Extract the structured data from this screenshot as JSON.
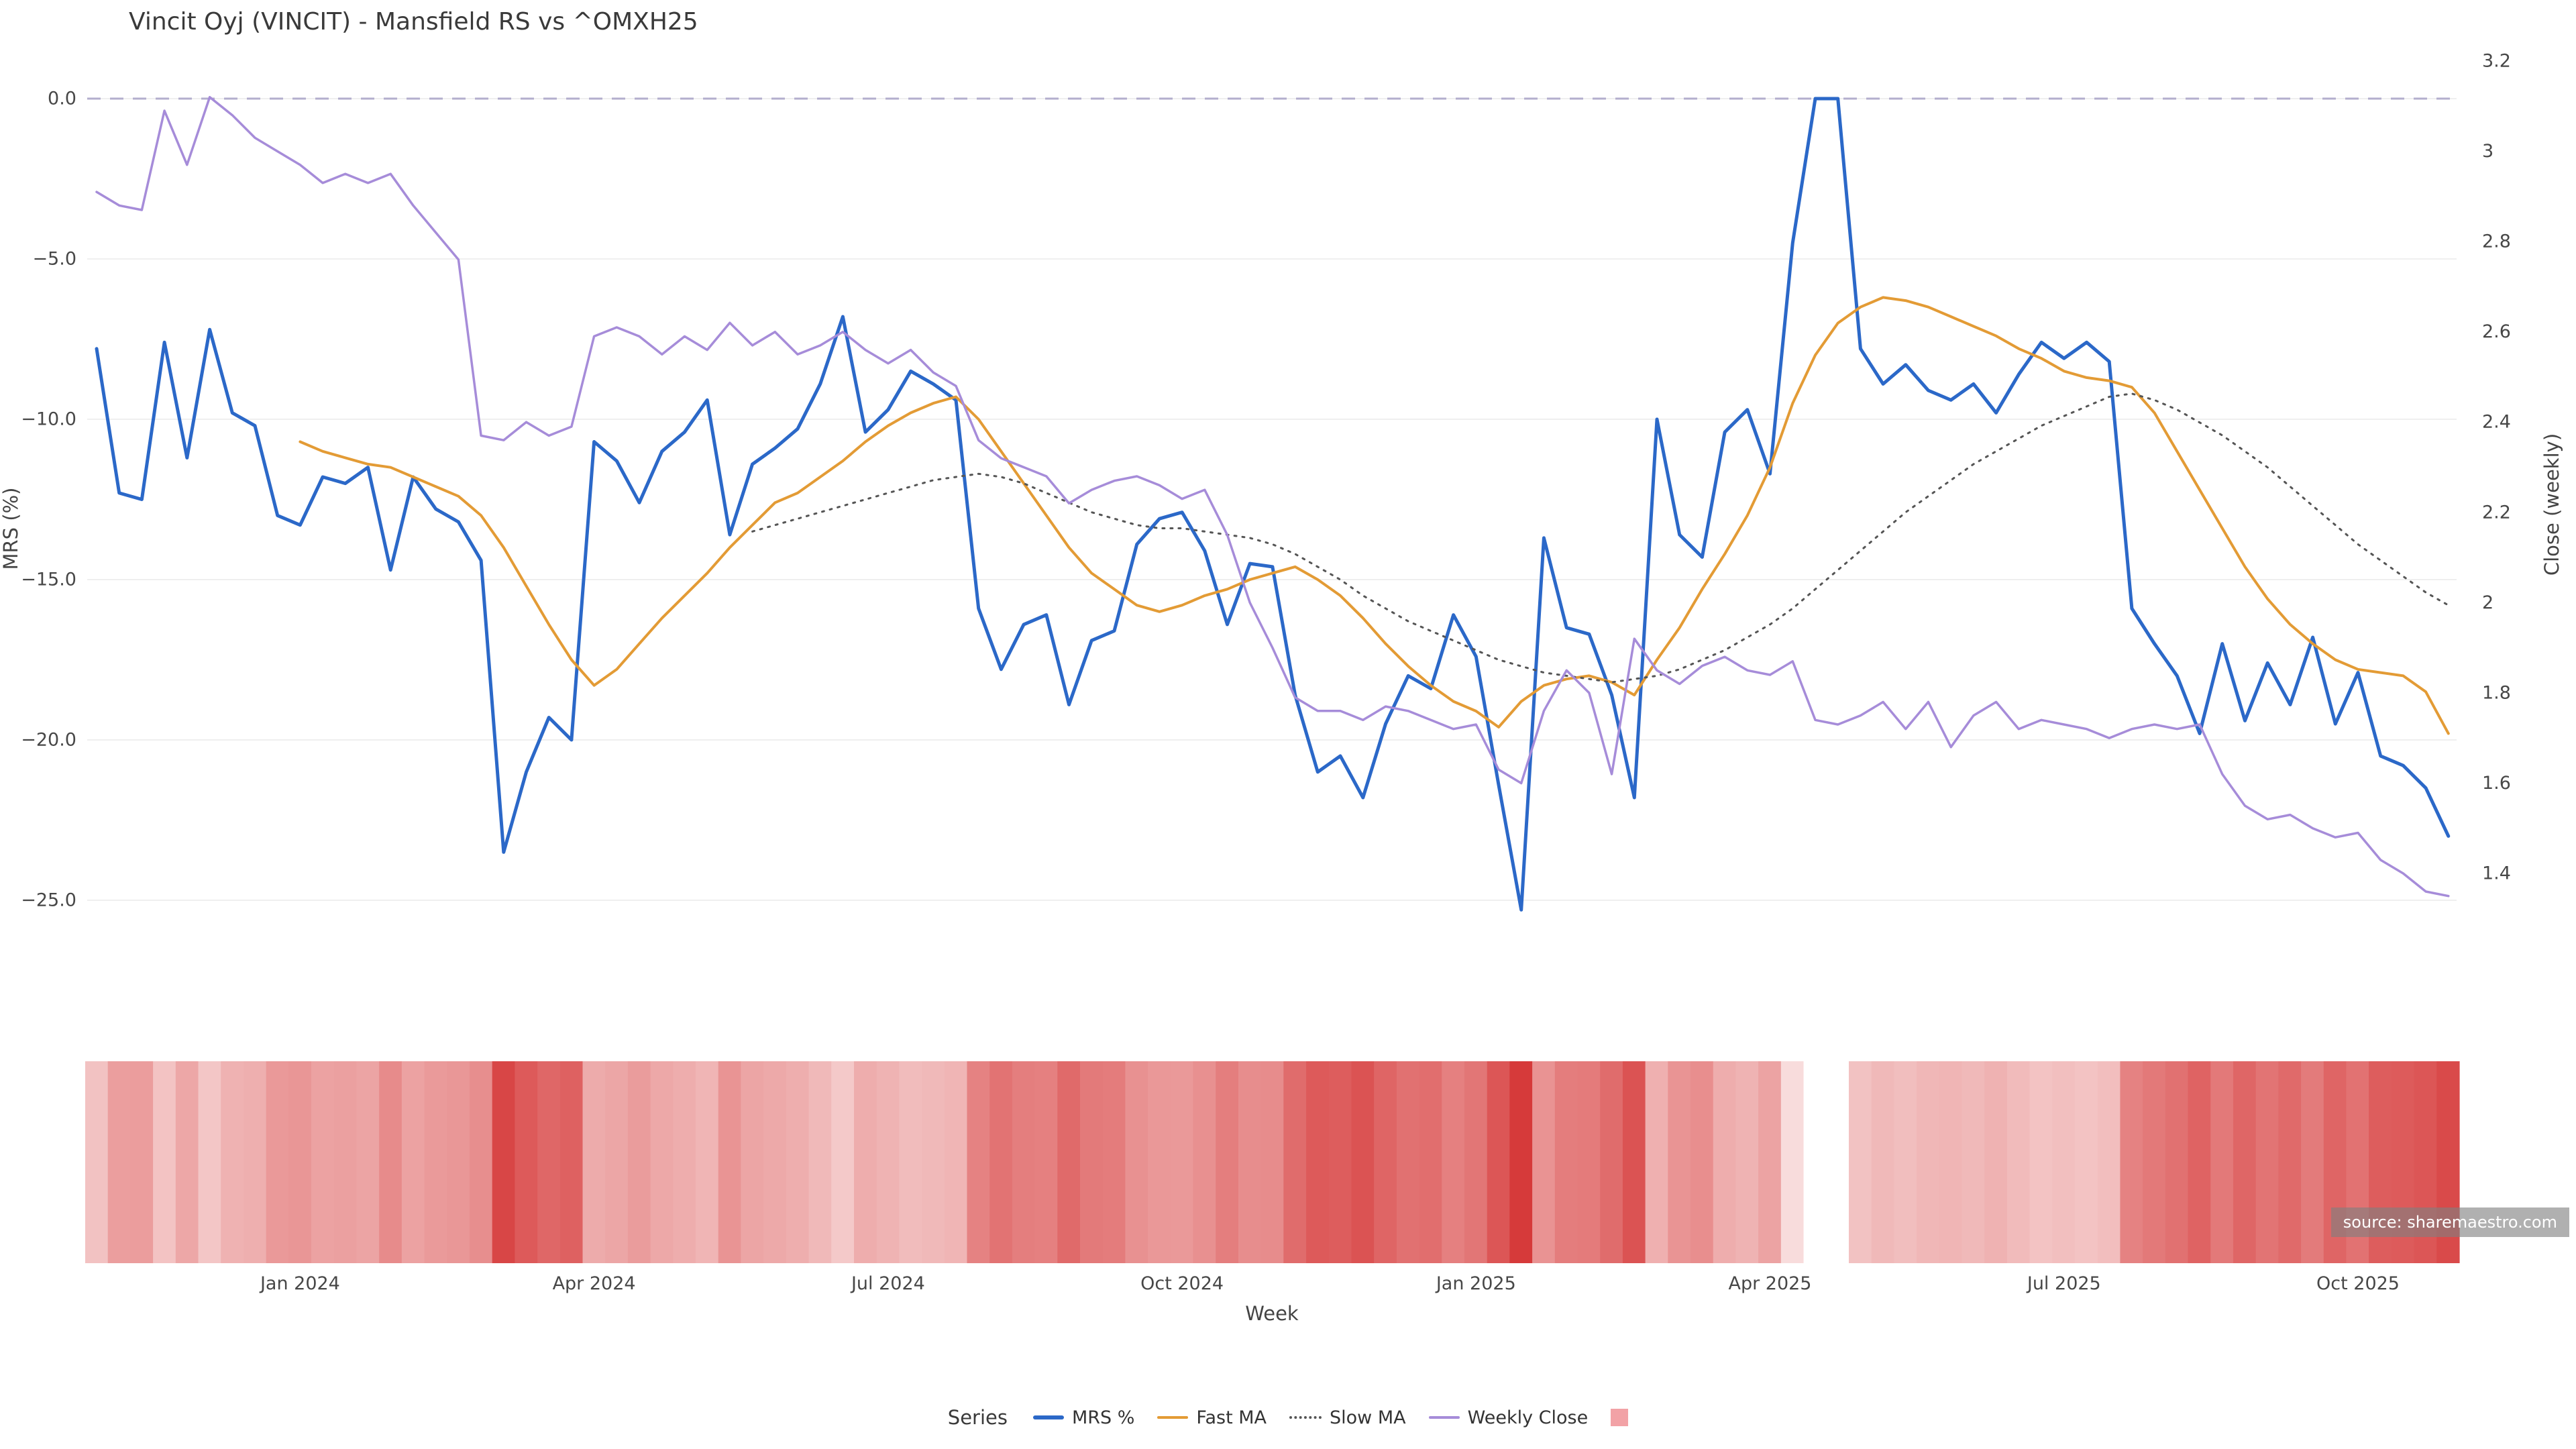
{
  "title": "Vincit Oyj (VINCIT) - Mansfield RS vs ^OMXH25",
  "source": "source: sharemaestro.com",
  "axes": {
    "x_title": "Week",
    "y_left_title": "MRS (%)",
    "y_right_title": "Close (weekly)",
    "y_left_ticks": [
      {
        "label": "0.0",
        "value": 0
      },
      {
        "label": "−5.0",
        "value": -5
      },
      {
        "label": "−10.0",
        "value": -10
      },
      {
        "label": "−15.0",
        "value": -15
      },
      {
        "label": "−20.0",
        "value": -20
      },
      {
        "label": "−25.0",
        "value": -25
      }
    ],
    "y_right_ticks": [
      {
        "label": "3.2",
        "value": 3.2
      },
      {
        "label": "3",
        "value": 3.0
      },
      {
        "label": "2.8",
        "value": 2.8
      },
      {
        "label": "2.6",
        "value": 2.6
      },
      {
        "label": "2.4",
        "value": 2.4
      },
      {
        "label": "2.2",
        "value": 2.2
      },
      {
        "label": "2",
        "value": 2.0
      },
      {
        "label": "1.8",
        "value": 1.8
      },
      {
        "label": "1.6",
        "value": 1.6
      },
      {
        "label": "1.4",
        "value": 1.4
      }
    ],
    "x_ticks": [
      {
        "label": "Jan 2024",
        "week": 9
      },
      {
        "label": "Apr 2024",
        "week": 22
      },
      {
        "label": "Jul 2024",
        "week": 35
      },
      {
        "label": "Oct 2024",
        "week": 48
      },
      {
        "label": "Jan 2025",
        "week": 61
      },
      {
        "label": "Apr 2025",
        "week": 74
      },
      {
        "label": "Jul 2025",
        "week": 87
      },
      {
        "label": "Oct 2025",
        "week": 100
      }
    ]
  },
  "legend": {
    "title": "Series",
    "entries": [
      {
        "label": "MRS %",
        "swatch": "line",
        "color": "#2b68c8",
        "thick": 6
      },
      {
        "label": "Fast MA",
        "swatch": "line",
        "color": "#e39b35",
        "thick": 4
      },
      {
        "label": "Slow MA",
        "swatch": "dotted",
        "color": "#555555",
        "thick": 4
      },
      {
        "label": "Weekly Close",
        "swatch": "line",
        "color": "#a68cd9",
        "thick": 4
      },
      {
        "label": "",
        "swatch": "square",
        "color": "#f2a2a6"
      }
    ]
  },
  "chart_data": {
    "type": "line",
    "x_unit": "weekly index, ticks mark months",
    "n_points": 105,
    "y_left_range": [
      -26.5,
      1.2
    ],
    "y_right_range": [
      1.3,
      3.2
    ],
    "grid": "horizontal-faint",
    "zero_line": {
      "axis": "left",
      "value": 0,
      "style": "dashed",
      "color": "#b3aecd"
    },
    "series": [
      {
        "name": "MRS %",
        "axis": "left",
        "color": "#2b68c8",
        "width": 5,
        "dash": null,
        "values": [
          -7.8,
          -12.3,
          -12.5,
          -7.6,
          -11.2,
          -7.2,
          -9.8,
          -10.2,
          -13.0,
          -13.3,
          -11.8,
          -12.0,
          -11.5,
          -14.7,
          -11.8,
          -12.8,
          -13.2,
          -14.4,
          -23.5,
          -21.0,
          -19.3,
          -20.0,
          -10.7,
          -11.3,
          -12.6,
          -11.0,
          -10.4,
          -9.4,
          -13.6,
          -11.4,
          -10.9,
          -10.3,
          -8.9,
          -6.8,
          -10.4,
          -9.7,
          -8.5,
          -8.9,
          -9.4,
          -15.9,
          -17.8,
          -16.4,
          -16.1,
          -18.9,
          -16.9,
          -16.6,
          -13.9,
          -13.1,
          -12.9,
          -14.1,
          -16.4,
          -14.5,
          -14.6,
          -18.6,
          -21.0,
          -20.5,
          -21.8,
          -19.5,
          -18.0,
          -18.4,
          -16.1,
          -17.4,
          -21.4,
          -25.3,
          -13.7,
          -16.5,
          -16.7,
          -18.6,
          -21.8,
          -10.0,
          -13.6,
          -14.3,
          -10.4,
          -9.7,
          -11.7,
          -4.5,
          0.0,
          0.0,
          -7.8,
          -8.9,
          -8.3,
          -9.1,
          -9.4,
          -8.9,
          -9.8,
          -8.6,
          -7.6,
          -8.1,
          -7.6,
          -8.2,
          -15.9,
          -17.0,
          -18.0,
          -19.8,
          -17.0,
          -19.4,
          -17.6,
          -18.9,
          -16.8,
          -19.5,
          -17.9,
          -20.5,
          -20.8,
          -21.5,
          -23.0
        ]
      },
      {
        "name": "Fast MA",
        "axis": "left",
        "color": "#e39b35",
        "width": 4,
        "dash": null,
        "values": [
          null,
          null,
          null,
          null,
          null,
          null,
          null,
          null,
          null,
          -10.7,
          -11.0,
          -11.2,
          -11.4,
          -11.5,
          -11.8,
          -12.1,
          -12.4,
          -13.0,
          -14.0,
          -15.2,
          -16.4,
          -17.5,
          -18.3,
          -17.8,
          -17.0,
          -16.2,
          -15.5,
          -14.8,
          -14.0,
          -13.3,
          -12.6,
          -12.3,
          -11.8,
          -11.3,
          -10.7,
          -10.2,
          -9.8,
          -9.5,
          -9.3,
          -10.0,
          -11.0,
          -12.0,
          -13.0,
          -14.0,
          -14.8,
          -15.3,
          -15.8,
          -16.0,
          -15.8,
          -15.5,
          -15.3,
          -15.0,
          -14.8,
          -14.6,
          -15.0,
          -15.5,
          -16.2,
          -17.0,
          -17.7,
          -18.3,
          -18.8,
          -19.1,
          -19.6,
          -18.8,
          -18.3,
          -18.1,
          -18.0,
          -18.2,
          -18.6,
          -17.5,
          -16.5,
          -15.3,
          -14.2,
          -13.0,
          -11.5,
          -9.5,
          -8.0,
          -7.0,
          -6.5,
          -6.2,
          -6.3,
          -6.5,
          -6.8,
          -7.1,
          -7.4,
          -7.8,
          -8.1,
          -8.5,
          -8.7,
          -8.8,
          -9.0,
          -9.8,
          -11.0,
          -12.2,
          -13.4,
          -14.6,
          -15.6,
          -16.4,
          -17.0,
          -17.5,
          -17.8,
          -17.9,
          -18.0,
          -18.5,
          -19.8
        ]
      },
      {
        "name": "Slow MA",
        "axis": "left",
        "color": "#555555",
        "width": 3,
        "dash": "3 9",
        "values": [
          null,
          null,
          null,
          null,
          null,
          null,
          null,
          null,
          null,
          null,
          null,
          null,
          null,
          null,
          null,
          null,
          null,
          null,
          null,
          null,
          null,
          null,
          null,
          null,
          null,
          null,
          null,
          null,
          null,
          -13.5,
          -13.3,
          -13.1,
          -12.9,
          -12.7,
          -12.5,
          -12.3,
          -12.1,
          -11.9,
          -11.8,
          -11.7,
          -11.8,
          -12.0,
          -12.3,
          -12.6,
          -12.9,
          -13.1,
          -13.3,
          -13.4,
          -13.4,
          -13.5,
          -13.6,
          -13.7,
          -13.9,
          -14.2,
          -14.6,
          -15.0,
          -15.5,
          -15.9,
          -16.3,
          -16.6,
          -16.9,
          -17.2,
          -17.5,
          -17.7,
          -17.9,
          -18.0,
          -18.1,
          -18.2,
          -18.1,
          -18.0,
          -17.8,
          -17.5,
          -17.2,
          -16.8,
          -16.4,
          -15.9,
          -15.3,
          -14.7,
          -14.1,
          -13.5,
          -12.9,
          -12.4,
          -11.9,
          -11.4,
          -11.0,
          -10.6,
          -10.2,
          -9.9,
          -9.6,
          -9.3,
          -9.2,
          -9.4,
          -9.7,
          -10.1,
          -10.5,
          -11.0,
          -11.5,
          -12.1,
          -12.7,
          -13.3,
          -13.9,
          -14.4,
          -14.9,
          -15.4,
          -15.8
        ]
      },
      {
        "name": "Weekly Close",
        "axis": "right",
        "color": "#a68cd9",
        "width": 3.5,
        "dash": null,
        "values": [
          2.91,
          2.88,
          2.87,
          3.09,
          2.97,
          3.12,
          3.08,
          3.03,
          3.0,
          2.97,
          2.93,
          2.95,
          2.93,
          2.95,
          2.88,
          2.82,
          2.76,
          2.37,
          2.36,
          2.4,
          2.37,
          2.39,
          2.59,
          2.61,
          2.59,
          2.55,
          2.59,
          2.56,
          2.62,
          2.57,
          2.6,
          2.55,
          2.57,
          2.6,
          2.56,
          2.53,
          2.56,
          2.51,
          2.48,
          2.36,
          2.32,
          2.3,
          2.28,
          2.22,
          2.25,
          2.27,
          2.28,
          2.26,
          2.23,
          2.25,
          2.15,
          2.0,
          1.9,
          1.79,
          1.76,
          1.76,
          1.74,
          1.77,
          1.76,
          1.74,
          1.72,
          1.73,
          1.63,
          1.6,
          1.76,
          1.85,
          1.8,
          1.62,
          1.92,
          1.85,
          1.82,
          1.86,
          1.88,
          1.85,
          1.84,
          1.87,
          1.74,
          1.73,
          1.75,
          1.78,
          1.72,
          1.78,
          1.68,
          1.75,
          1.78,
          1.72,
          1.74,
          1.73,
          1.72,
          1.7,
          1.72,
          1.73,
          1.72,
          1.73,
          1.62,
          1.55,
          1.52,
          1.53,
          1.5,
          1.48,
          1.49,
          1.43,
          1.4,
          1.36,
          1.35
        ]
      }
    ],
    "heatmap_strip": {
      "encodes": "MRS % per week (white ≈ 0, dark red ≈ −25)",
      "color_min": "#ffffff",
      "color_max": "#d63a3a",
      "value_domain": [
        0,
        -25
      ]
    }
  }
}
